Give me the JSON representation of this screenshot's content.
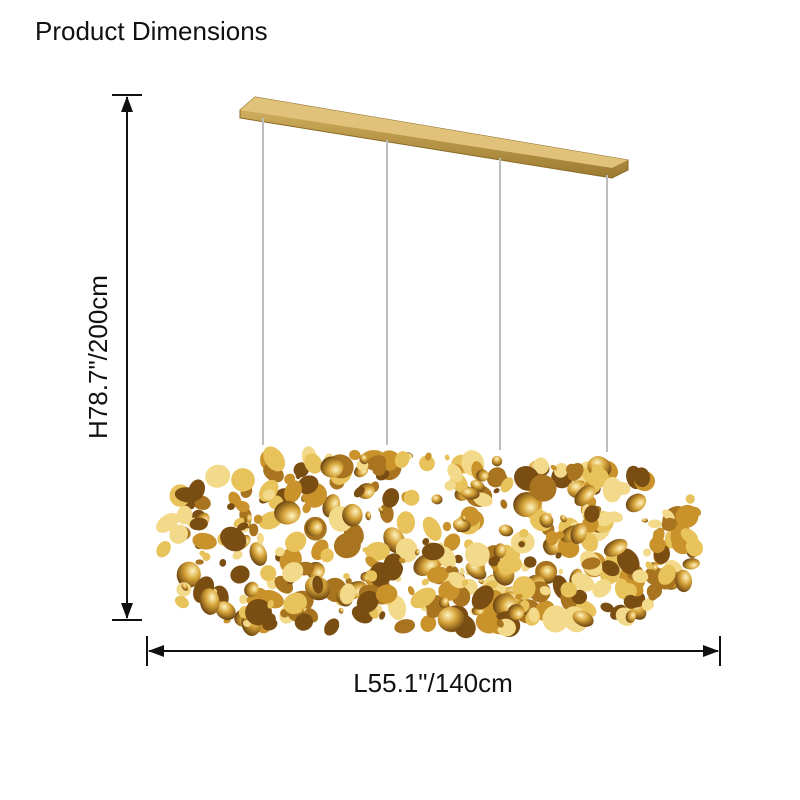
{
  "header": {
    "title": "Product Dimensions"
  },
  "dimensions": {
    "height": "H78.7\"/200cm",
    "length": "L55.1\"/140cm"
  }
}
